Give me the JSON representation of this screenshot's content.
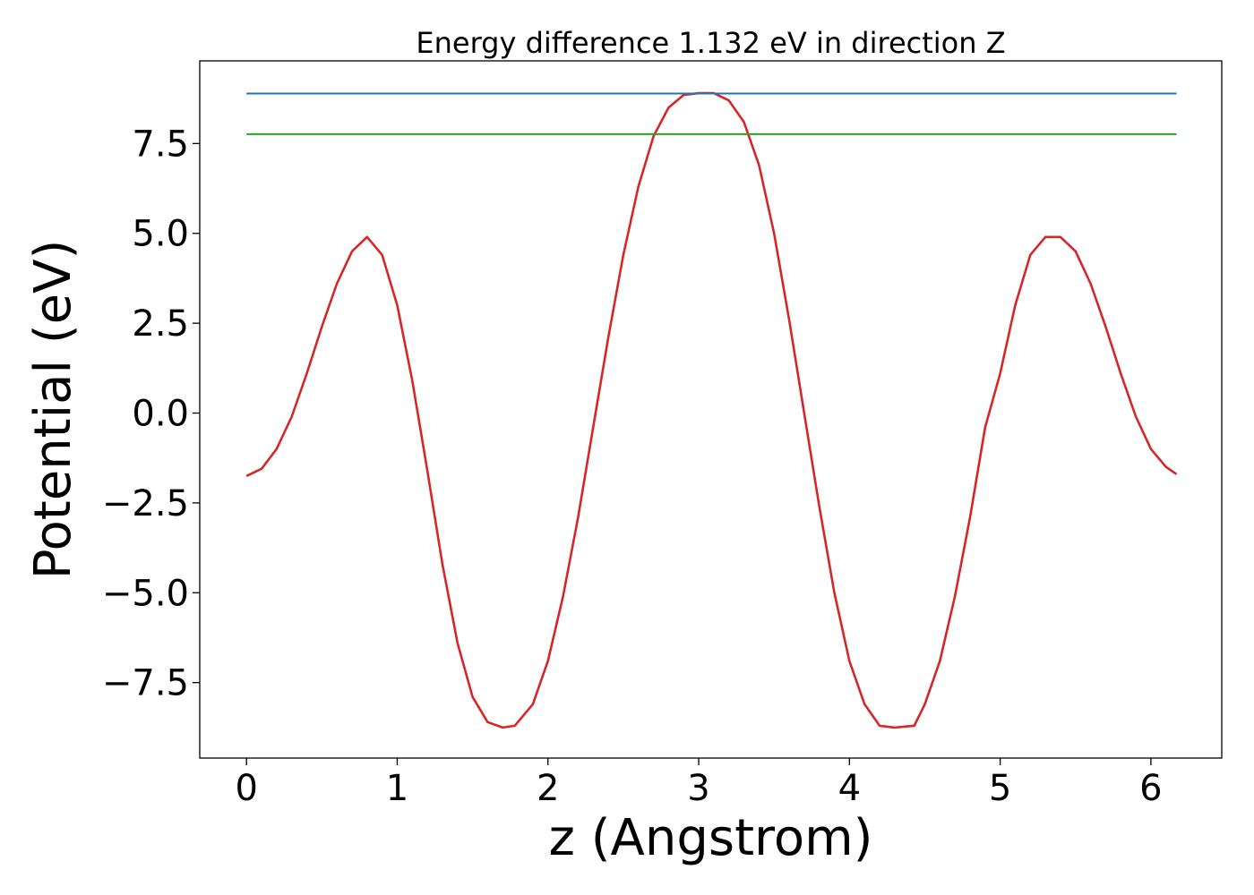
{
  "chart_data": {
    "type": "line",
    "title": "Energy difference 1.132 eV in direction Z",
    "xlabel": "z (Angstrom)",
    "ylabel": "Potential (eV)",
    "xlim": [
      -0.31,
      6.47
    ],
    "ylim": [
      -9.6,
      9.8
    ],
    "xticks": [
      0,
      1,
      2,
      3,
      4,
      5,
      6
    ],
    "xtick_labels": [
      "0",
      "1",
      "2",
      "3",
      "4",
      "5",
      "6"
    ],
    "yticks": [
      -7.5,
      -5.0,
      -2.5,
      0.0,
      2.5,
      5.0,
      7.5
    ],
    "ytick_labels": [
      "−7.5",
      "−5.0",
      "−2.5",
      "0.0",
      "2.5",
      "5.0",
      "7.5"
    ],
    "grid": false,
    "series": [
      {
        "color": "#d62728",
        "x": [
          0.0,
          0.1,
          0.2,
          0.3,
          0.4,
          0.5,
          0.6,
          0.7,
          0.8,
          0.9,
          1.0,
          1.1,
          1.2,
          1.3,
          1.4,
          1.5,
          1.6,
          1.7,
          1.78,
          1.9,
          2.0,
          2.1,
          2.2,
          2.3,
          2.4,
          2.5,
          2.6,
          2.7,
          2.8,
          2.9,
          3.0,
          3.1,
          3.2,
          3.3,
          3.4,
          3.5,
          3.6,
          3.7,
          3.8,
          3.9,
          4.0,
          4.1,
          4.2,
          4.3,
          4.43,
          4.5,
          4.6,
          4.7,
          4.8,
          4.9,
          5.0,
          5.1,
          5.2,
          5.3,
          5.4,
          5.5,
          5.6,
          5.7,
          5.8,
          5.9,
          6.0,
          6.1,
          6.17
        ],
        "y": [
          -1.75,
          -1.55,
          -1.0,
          -0.1,
          1.1,
          2.4,
          3.6,
          4.5,
          4.9,
          4.4,
          3.0,
          0.9,
          -1.6,
          -4.2,
          -6.4,
          -7.9,
          -8.6,
          -8.75,
          -8.7,
          -8.1,
          -6.9,
          -5.1,
          -2.9,
          -0.4,
          2.1,
          4.4,
          6.3,
          7.7,
          8.5,
          8.85,
          8.9,
          8.9,
          8.7,
          8.1,
          6.9,
          5.0,
          2.6,
          0.0,
          -2.6,
          -5.0,
          -6.9,
          -8.1,
          -8.7,
          -8.75,
          -8.7,
          -8.1,
          -6.9,
          -5.1,
          -2.9,
          -0.4,
          1.1,
          3.0,
          4.4,
          4.9,
          4.9,
          4.5,
          3.6,
          2.4,
          1.1,
          -0.1,
          -1.0,
          -1.5,
          -1.7
        ]
      },
      {
        "color": "#1f77b4",
        "x": [
          0.0,
          6.17
        ],
        "y": [
          8.89,
          8.89
        ]
      },
      {
        "color": "#2ca02c",
        "x": [
          0.0,
          6.17
        ],
        "y": [
          7.76,
          7.76
        ]
      }
    ]
  }
}
